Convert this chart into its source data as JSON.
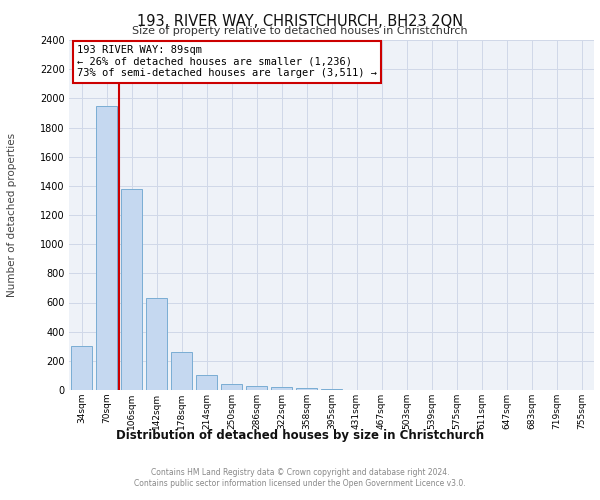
{
  "title": "193, RIVER WAY, CHRISTCHURCH, BH23 2QN",
  "subtitle": "Size of property relative to detached houses in Christchurch",
  "xlabel": "Distribution of detached houses by size in Christchurch",
  "ylabel": "Number of detached properties",
  "categories": [
    "34sqm",
    "70sqm",
    "106sqm",
    "142sqm",
    "178sqm",
    "214sqm",
    "250sqm",
    "286sqm",
    "322sqm",
    "358sqm",
    "395sqm",
    "431sqm",
    "467sqm",
    "503sqm",
    "539sqm",
    "575sqm",
    "611sqm",
    "647sqm",
    "683sqm",
    "719sqm",
    "755sqm"
  ],
  "values": [
    300,
    1950,
    1380,
    630,
    260,
    100,
    40,
    25,
    20,
    15,
    10,
    0,
    0,
    0,
    0,
    0,
    0,
    0,
    0,
    0,
    0
  ],
  "bar_color": "#c5d8f0",
  "bar_edge_color": "#7aadd4",
  "red_line_x": 1.5,
  "annotation_title": "193 RIVER WAY: 89sqm",
  "annotation_line1": "← 26% of detached houses are smaller (1,236)",
  "annotation_line2": "73% of semi-detached houses are larger (3,511) →",
  "annotation_box_color": "#ffffff",
  "annotation_box_edge": "#cc0000",
  "red_line_color": "#cc0000",
  "ylim": [
    0,
    2400
  ],
  "yticks": [
    0,
    200,
    400,
    600,
    800,
    1000,
    1200,
    1400,
    1600,
    1800,
    2000,
    2200,
    2400
  ],
  "grid_color": "#d0d8e8",
  "background_color": "#eef2f8",
  "footer_line1": "Contains HM Land Registry data © Crown copyright and database right 2024.",
  "footer_line2": "Contains public sector information licensed under the Open Government Licence v3.0."
}
